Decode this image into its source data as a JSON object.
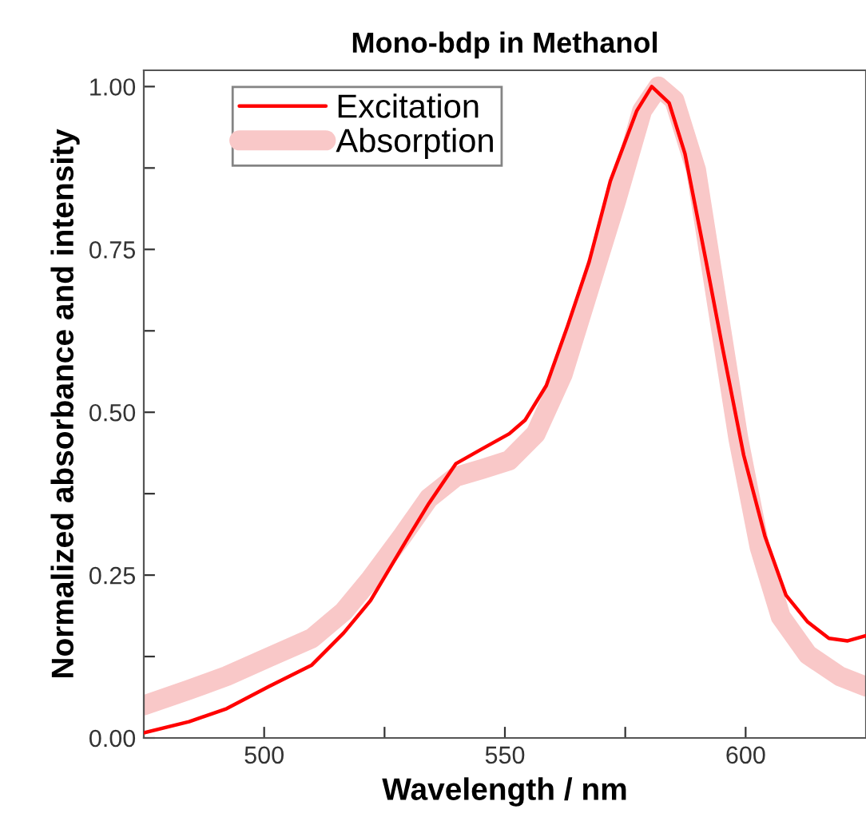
{
  "chart_data": {
    "type": "line",
    "title": "Mono-bdp in Methanol",
    "xlabel": "Wavelength / nm",
    "ylabel": "Normalized absorbance and intensity",
    "xlim": [
      475,
      625
    ],
    "ylim": [
      0,
      1.025
    ],
    "xticks": [
      500,
      {
        "value": 525,
        "label": null
      },
      550,
      {
        "value": 575,
        "label": null
      },
      600
    ],
    "yticks": [
      {
        "value": 0,
        "label": "0.00"
      },
      {
        "value": 0.125,
        "label": null
      },
      {
        "value": 0.25,
        "label": "0.25"
      },
      {
        "value": 0.375,
        "label": null
      },
      {
        "value": 0.5,
        "label": "0.50"
      },
      {
        "value": 0.625,
        "label": null
      },
      {
        "value": 0.75,
        "label": "0.75"
      },
      {
        "value": 0.875,
        "label": null
      },
      {
        "value": 1,
        "label": "1.00"
      }
    ],
    "legend": "top left",
    "grid": false,
    "line_style": "solid",
    "series": [
      {
        "name": "Excitation",
        "color": "#ff0000",
        "x": [
          475,
          484.4,
          492.2,
          501,
          509.9,
          516.5,
          522.1,
          528.7,
          534.2,
          539.8,
          545.3,
          550.9,
          554.2,
          558.6,
          563,
          567.5,
          571.9,
          577.4,
          580.5,
          584.1,
          587.4,
          591.8,
          595.2,
          599.6,
          604,
          608.4,
          612.9,
          617.3,
          621.2,
          625
        ],
        "values": [
          0.008,
          0.025,
          0.045,
          0.079,
          0.112,
          0.161,
          0.211,
          0.293,
          0.36,
          0.421,
          0.444,
          0.467,
          0.488,
          0.541,
          0.632,
          0.731,
          0.855,
          0.963,
          1.0,
          0.975,
          0.897,
          0.731,
          0.599,
          0.434,
          0.31,
          0.219,
          0.178,
          0.153,
          0.149,
          0.157
        ]
      },
      {
        "name": "Absorption",
        "color": "#f9c8c8",
        "x": [
          475,
          484.4,
          492.2,
          501,
          509.9,
          516.5,
          522.1,
          528.7,
          534.2,
          539.8,
          545.3,
          550.9,
          556.4,
          562,
          567.5,
          573,
          578.5,
          581.9,
          585.2,
          589.7,
          594.1,
          598.5,
          602.9,
          607.3,
          612.9,
          619.5,
          625
        ],
        "values": [
          0.05,
          0.074,
          0.095,
          0.124,
          0.153,
          0.194,
          0.244,
          0.31,
          0.368,
          0.401,
          0.413,
          0.426,
          0.467,
          0.558,
          0.69,
          0.822,
          0.963,
          1.0,
          0.979,
          0.872,
          0.665,
          0.459,
          0.293,
          0.186,
          0.128,
          0.095,
          0.079
        ]
      }
    ]
  }
}
